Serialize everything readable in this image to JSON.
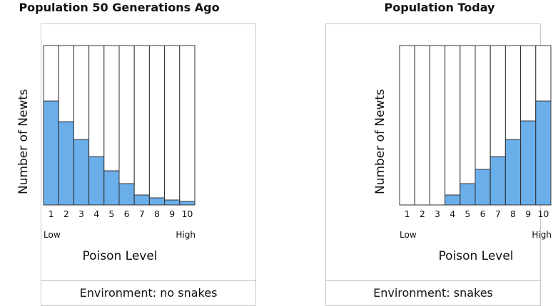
{
  "accent": "#6aaeea",
  "chart_data": [
    {
      "type": "bar",
      "title": "Population 50 Generations Ago",
      "xlabel": "Poison Level",
      "ylabel": "Number of Newts",
      "categories": [
        "1",
        "2",
        "3",
        "4",
        "5",
        "6",
        "7",
        "8",
        "9",
        "10"
      ],
      "values": [
        146,
        117,
        92,
        68,
        48,
        30,
        14,
        10,
        7,
        5
      ],
      "ylim": [
        0,
        224
      ],
      "low_label": "Low",
      "high_label": "High",
      "footer": "Environment: no snakes"
    },
    {
      "type": "bar",
      "title": "Population Today",
      "xlabel": "Poison Level",
      "ylabel": "Number of Newts",
      "categories": [
        "1",
        "2",
        "3",
        "4",
        "5",
        "6",
        "7",
        "8",
        "9",
        "10"
      ],
      "values": [
        0,
        0,
        0,
        14,
        30,
        50,
        68,
        92,
        118,
        146
      ],
      "ylim": [
        0,
        224
      ],
      "low_label": "Low",
      "high_label": "High",
      "footer": "Environment: snakes"
    }
  ]
}
